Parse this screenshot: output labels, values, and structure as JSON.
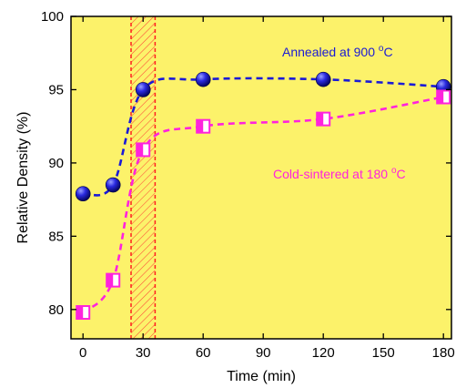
{
  "chart_data": {
    "type": "line",
    "xlabel": "Time (min)",
    "ylabel": "Relative Density (%)",
    "xlim": [
      -6,
      184
    ],
    "ylim": [
      78,
      100
    ],
    "xticks": [
      0,
      30,
      60,
      90,
      120,
      150,
      180
    ],
    "yticks": [
      80,
      85,
      90,
      95,
      100
    ],
    "background_color": "#fcf26a",
    "grid": false,
    "highlight_band": {
      "x": [
        24,
        36
      ],
      "color": "#ff2020",
      "pattern": "hatched"
    },
    "series": [
      {
        "label": "Annealed at 900 °C",
        "color": "#1a1ad6",
        "marker": "sphere",
        "x": [
          0,
          15,
          30,
          60,
          120,
          180
        ],
        "y": [
          87.9,
          88.5,
          95.0,
          95.7,
          95.7,
          95.2
        ]
      },
      {
        "label": "Cold-sintered at 180 °C",
        "color": "#ff22dd",
        "marker": "half-filled-square",
        "x": [
          0,
          15,
          30,
          60,
          120,
          180
        ],
        "y": [
          79.8,
          82.0,
          90.9,
          92.5,
          93.0,
          94.5
        ]
      }
    ]
  }
}
